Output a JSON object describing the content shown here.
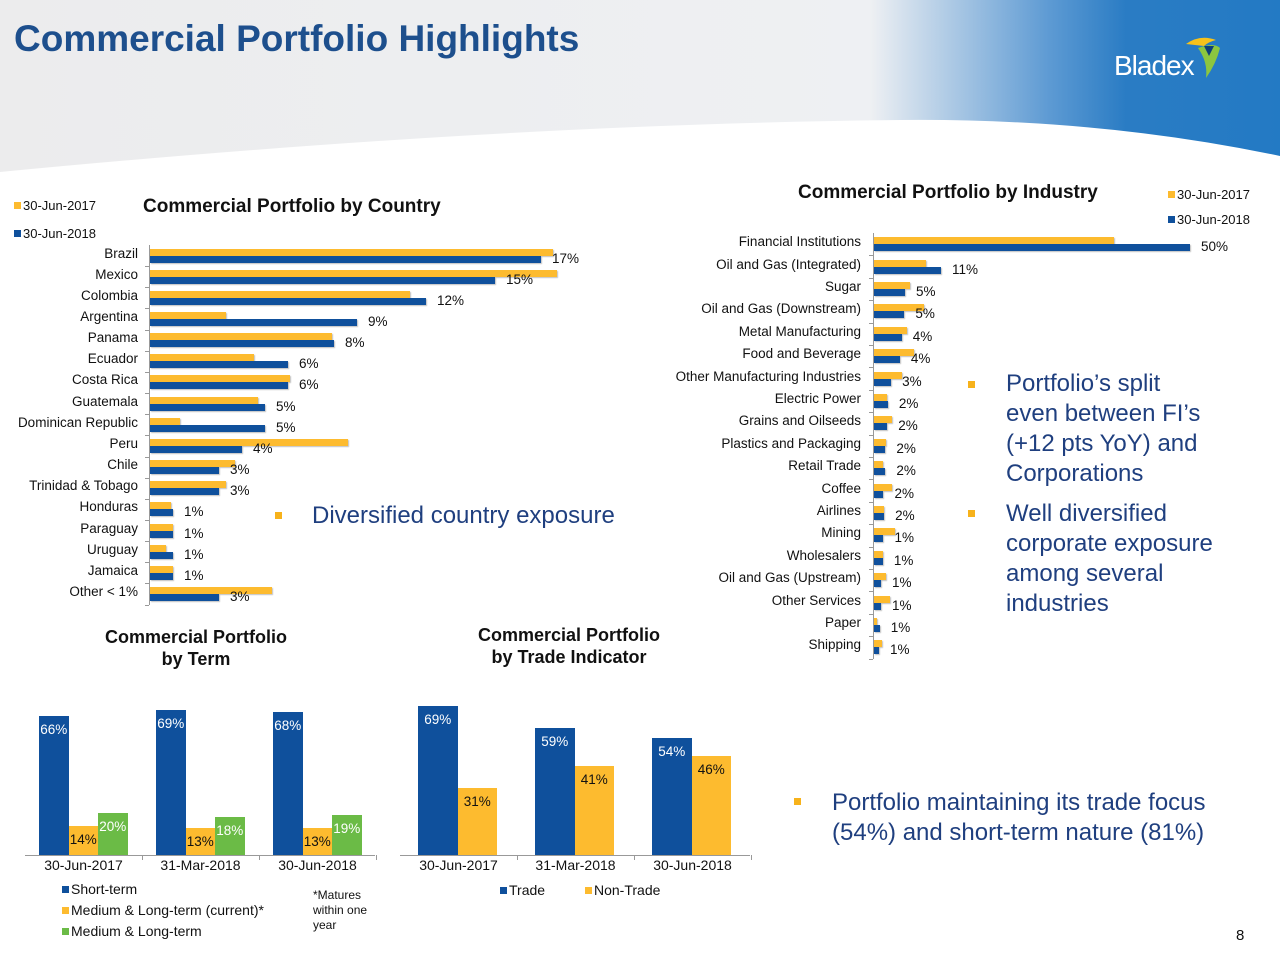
{
  "header": {
    "title": "Commercial Portfolio Highlights",
    "logo_text": "Bladex"
  },
  "colors": {
    "y2017": "#fdbb2f",
    "y2018": "#0f509c",
    "green": "#6bbb46",
    "text_blue": "#1f3f7f"
  },
  "bullets": {
    "country": "Diversified country exposure",
    "industry_1": [
      "Portfolio’s split",
      "even between FI’s",
      "(+12 pts YoY) and",
      "Corporations"
    ],
    "industry_2": [
      "Well diversified",
      "corporate exposure",
      "among several",
      "industries"
    ],
    "term_trade": [
      "Portfolio maintaining its trade focus",
      "(54%) and short-term nature (81%)"
    ]
  },
  "footnote": [
    "*Matures",
    "within one",
    "year"
  ],
  "page_number": "8",
  "chart_data": [
    {
      "type": "bar",
      "orientation": "horizontal",
      "title": "Commercial Portfolio by Country",
      "legend_position": "top-left",
      "categories": [
        "Brazil",
        "Mexico",
        "Colombia",
        "Argentina",
        "Panama",
        "Ecuador",
        "Costa Rica",
        "Guatemala",
        "Dominican Republic",
        "Peru",
        "Chile",
        "Trinidad & Tobago",
        "Honduras",
        "Paraguay",
        "Uruguay",
        "Jamaica",
        "Other < 1%"
      ],
      "series": [
        {
          "name": "30-Jun-2017",
          "values": [
            17.5,
            17.7,
            11.3,
            3.3,
            7.9,
            4.5,
            6.1,
            4.7,
            1.3,
            8.6,
            3.7,
            3.3,
            0.9,
            1.0,
            0.7,
            1.0,
            5.3
          ]
        },
        {
          "name": "30-Jun-2018",
          "values": [
            17,
            15,
            12,
            9,
            8,
            6,
            6,
            5,
            5,
            4,
            3,
            3,
            1,
            1,
            1,
            1,
            3
          ]
        }
      ],
      "data_labels": [
        "17%",
        "15%",
        "12%",
        "9%",
        "8%",
        "6%",
        "6%",
        "5%",
        "5%",
        "4%",
        "3%",
        "3%",
        "1%",
        "1%",
        "1%",
        "1%",
        "3%"
      ]
    },
    {
      "type": "bar",
      "orientation": "horizontal",
      "title": "Commercial Portfolio by Industry",
      "legend_position": "top-right",
      "categories": [
        "Financial Institutions",
        "Oil and Gas (Integrated)",
        "Sugar",
        "Oil and Gas (Downstream)",
        "Metal Manufacturing",
        "Food and Beverage",
        "Other Manufacturing Industries",
        "Electric Power",
        "Grains and Oilseeds",
        "Plastics and Packaging",
        "Retail Trade",
        "Coffee",
        "Airlines",
        "Mining",
        "Wholesalers",
        "Oil and Gas (Upstream)",
        "Other Services",
        "Paper",
        "Shipping"
      ],
      "series": [
        {
          "name": "30-Jun-2017",
          "values": [
            38,
            8.2,
            5.7,
            7.9,
            5.2,
            6.4,
            4.4,
            2.1,
            2.9,
            1.9,
            1.4,
            2.9,
            1.6,
            3.4,
            1.5,
            1.9,
            2.6,
            0.5,
            1.2
          ]
        },
        {
          "name": "30-Jun-2018",
          "values": [
            50,
            10.6,
            4.9,
            4.8,
            4.4,
            4.1,
            2.7,
            2.2,
            2.1,
            1.8,
            1.8,
            1.5,
            1.6,
            1.5,
            1.4,
            1.1,
            1.1,
            0.9,
            0.8
          ]
        }
      ],
      "data_labels": [
        "50%",
        "11%",
        "5%",
        "5%",
        "4%",
        "4%",
        "3%",
        "2%",
        "2%",
        "2%",
        "2%",
        "2%",
        "2%",
        "1%",
        "1%",
        "1%",
        "1%",
        "1%",
        "1%"
      ]
    },
    {
      "type": "bar",
      "title": [
        "Commercial Portfolio",
        "by Term"
      ],
      "legend_position": "bottom",
      "categories": [
        "30-Jun-2017",
        "31-Mar-2018",
        "30-Jun-2018"
      ],
      "series": [
        {
          "name": "Short-term",
          "values": [
            66,
            69,
            68
          ]
        },
        {
          "name": "Medium & Long-term (current)*",
          "values": [
            14,
            13,
            13
          ]
        },
        {
          "name": "Medium & Long-term",
          "values": [
            20,
            18,
            19
          ]
        }
      ]
    },
    {
      "type": "bar",
      "title": [
        "Commercial Portfolio",
        "by Trade Indicator"
      ],
      "legend_position": "bottom",
      "categories": [
        "30-Jun-2017",
        "31-Mar-2018",
        "30-Jun-2018"
      ],
      "series": [
        {
          "name": "Trade",
          "values": [
            69,
            59,
            54
          ]
        },
        {
          "name": "Non-Trade",
          "values": [
            31,
            41,
            46
          ]
        }
      ]
    }
  ]
}
